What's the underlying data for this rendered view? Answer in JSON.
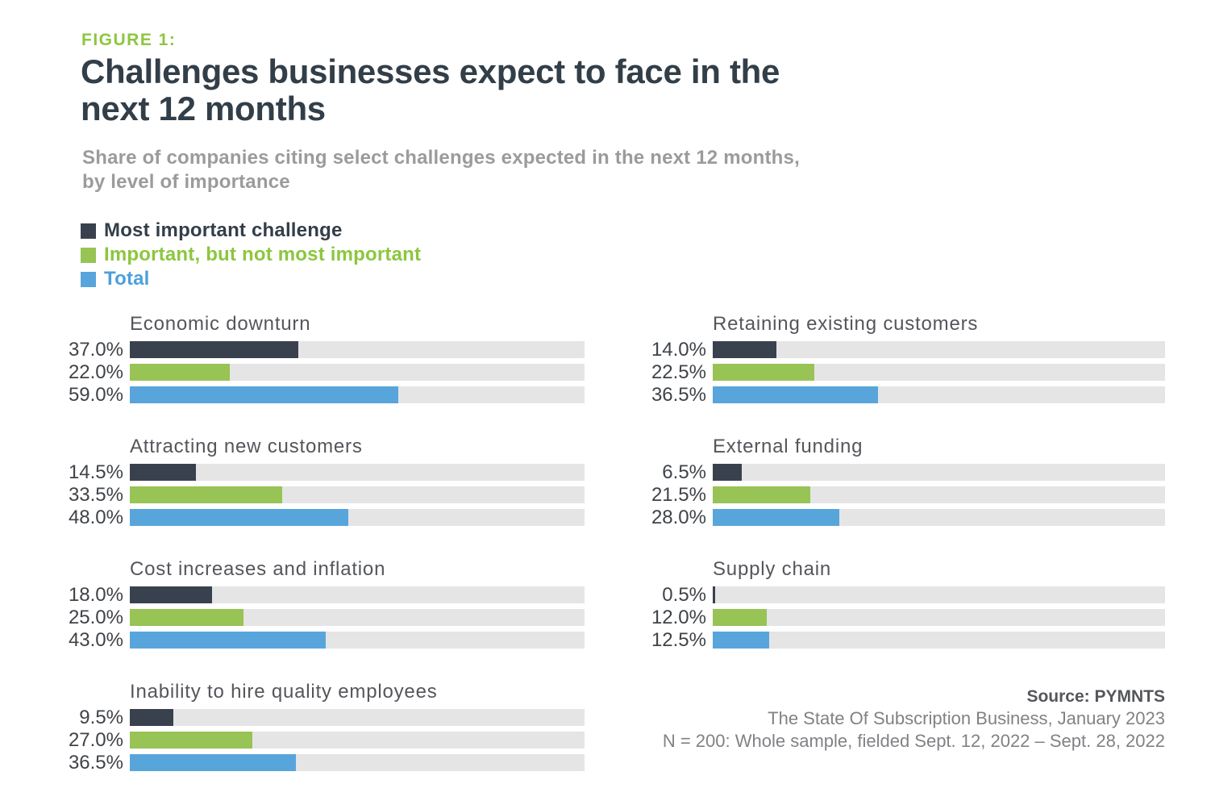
{
  "header": {
    "figure_label": "FIGURE 1:",
    "title_line1": "Challenges businesses expect to face in the",
    "title_line2": "next 12 months",
    "subtitle_line1": "Share of companies citing select challenges expected in the next 12 months,",
    "subtitle_line2": "by level of importance"
  },
  "legend": {
    "items": [
      {
        "label": "Most important challenge",
        "color": "#3A414E"
      },
      {
        "label": "Important, but not most important",
        "color": "#98C355"
      },
      {
        "label": "Total",
        "color": "#58A5DC"
      }
    ]
  },
  "colors": {
    "accent_green_text": "#8CC63F",
    "accent_blue_text": "#4BA1DC",
    "title_navy": "#323E48",
    "bar_dark": "#3A414E",
    "bar_green": "#98C355",
    "bar_blue": "#58A5DC",
    "bar_track": "#E5E5E5",
    "subtitle_gray": "#9B9B9D"
  },
  "chart_data": {
    "type": "bar",
    "orientation": "horizontal",
    "unit": "%",
    "value_axis_range": [
      0,
      100
    ],
    "grid": false,
    "legend_position": "top-left",
    "title": "Challenges businesses expect to face in the next 12 months",
    "series": [
      "Most important challenge",
      "Important, but not most important",
      "Total"
    ],
    "series_colors": [
      "#3A414E",
      "#98C355",
      "#58A5DC"
    ],
    "columns": {
      "left": [
        {
          "category": "Economic downturn",
          "values": [
            37.0,
            22.0,
            59.0
          ],
          "labels": [
            "37.0%",
            "22.0%",
            "59.0%"
          ]
        },
        {
          "category": "Attracting new customers",
          "values": [
            14.5,
            33.5,
            48.0
          ],
          "labels": [
            "14.5%",
            "33.5%",
            "48.0%"
          ]
        },
        {
          "category": "Cost increases and inflation",
          "values": [
            18.0,
            25.0,
            43.0
          ],
          "labels": [
            "18.0%",
            "25.0%",
            "43.0%"
          ]
        },
        {
          "category": "Inability to hire quality employees",
          "values": [
            9.5,
            27.0,
            36.5
          ],
          "labels": [
            "9.5%",
            "27.0%",
            "36.5%"
          ]
        }
      ],
      "right": [
        {
          "category": "Retaining existing customers",
          "values": [
            14.0,
            22.5,
            36.5
          ],
          "labels": [
            "14.0%",
            "22.5%",
            "36.5%"
          ]
        },
        {
          "category": "External funding",
          "values": [
            6.5,
            21.5,
            28.0
          ],
          "labels": [
            "6.5%",
            "21.5%",
            "28.0%"
          ]
        },
        {
          "category": "Supply chain",
          "values": [
            0.5,
            12.0,
            12.5
          ],
          "labels": [
            "0.5%",
            "12.0%",
            "12.5%"
          ]
        }
      ]
    }
  },
  "source": {
    "bold_line": "Source: PYMNTS",
    "line2": "The State Of Subscription Business, January 2023",
    "line3": "N = 200: Whole sample, fielded Sept. 12, 2022 – Sept. 28, 2022"
  }
}
